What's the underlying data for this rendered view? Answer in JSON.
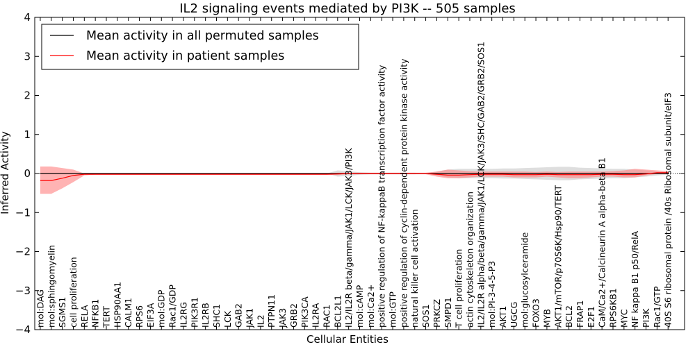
{
  "chart_data": {
    "type": "line",
    "title": "IL2 signaling events mediated by PI3K -- 505 samples",
    "xlabel": "Cellular Entities",
    "ylabel": "Inferred Activity",
    "ylim": [
      -4,
      4
    ],
    "yticks": [
      -4,
      -3,
      -2,
      -1,
      0,
      1,
      2,
      3,
      4
    ],
    "legend_position": "top-left",
    "legend": [
      "Mean activity in all permuted samples",
      "Mean activity in patient samples"
    ],
    "colors": {
      "permuted": "#000000",
      "patient": "#ff0000",
      "patient_band": "#ff8080",
      "permuted_band": "#c8c8c8"
    },
    "categories": [
      "mol:DAG",
      "mol:sphingomyelin",
      "SGMS1",
      "cell proliferation",
      "RELA",
      "NFKB1",
      "TERT",
      "HSP90AA1",
      "CALM1",
      "RPS6",
      "EIF3A",
      "mol:GDP",
      "Rac1/GDP",
      "IL2RG",
      "PIK3R1",
      "IL2RB",
      "SHC1",
      "LCK",
      "GAB2",
      "JAK1",
      "IL2",
      "PTPN11",
      "JAK3",
      "GRB2",
      "PIK3CA",
      "IL2RA",
      "RAC1",
      "BCL2L1",
      "IL2/IL2R beta/gamma/JAK1/LCK/JAK3/PI3K",
      "mol:cAMP",
      "mol:Ca2+",
      "positive regulation of NF-kappaB transcription factor activity",
      "mol:GTP",
      "positive regulation of cyclin-dependent protein kinase activity",
      "natural killer cell activation",
      "SOS1",
      "PRKCZ",
      "SMPD1",
      "T cell proliferation",
      "actin cytoskeleton organization",
      "IL2/IL2R alpha/beta/gamma/JAK1/LCK/JAK3/SHC/GAB2/GRB2/SOS1",
      "mol:PI-3-4-5-P3",
      "AKT1",
      "UGCG",
      "mol:glucosylceramide",
      "FOXO3",
      "MYB",
      "AKT1/mTOR/p70S6K/Hsp90/TERT",
      "BCL2",
      "FRAP1",
      "E2F1",
      "CaM/Ca2+/Calcineurin A alpha-beta B1",
      "RPS6KB1",
      "MYC",
      "NF kappa B1 p50/RelA",
      "PI3K",
      "Rac1/GTP",
      "40S S6 ribosomal protein /40s Ribosomal subunit/eIF3"
    ],
    "series": [
      {
        "name": "Mean activity in all permuted samples",
        "values": [
          0,
          0,
          0,
          0,
          0,
          0,
          0,
          0,
          0,
          0,
          0,
          0,
          0,
          0,
          0,
          0,
          0,
          0,
          0,
          0,
          0,
          0,
          0,
          0,
          0,
          0,
          0,
          0,
          0,
          0,
          0,
          0,
          0,
          0,
          0,
          0,
          0,
          0,
          0,
          0,
          0,
          0,
          0,
          0,
          0,
          0,
          0,
          0,
          0,
          0,
          0,
          0,
          0,
          0,
          0,
          0,
          0,
          0
        ],
        "lower": [
          0,
          0,
          0,
          0,
          0,
          0,
          0,
          0,
          0,
          0,
          0,
          0,
          0,
          0,
          0,
          0,
          0,
          0,
          0,
          0,
          0,
          0,
          0,
          0,
          0,
          0,
          0,
          -0.08,
          -0.06,
          -0.03,
          -0.02,
          -0.02,
          -0.02,
          -0.02,
          -0.02,
          0,
          -0.05,
          -0.1,
          -0.12,
          -0.12,
          -0.12,
          -0.12,
          -0.13,
          -0.13,
          -0.14,
          -0.15,
          -0.16,
          -0.17,
          -0.17,
          -0.15,
          -0.14,
          -0.13,
          -0.12,
          -0.12,
          -0.1,
          -0.08,
          -0.05,
          -0.03
        ],
        "upper": [
          0,
          0,
          0,
          0,
          0,
          0,
          0,
          0,
          0,
          0,
          0,
          0,
          0,
          0,
          0,
          0,
          0,
          0,
          0,
          0,
          0,
          0,
          0,
          0,
          0,
          0,
          0,
          0.08,
          0.06,
          0.03,
          0.02,
          0.02,
          0.02,
          0.02,
          0.02,
          0,
          0.05,
          0.1,
          0.12,
          0.12,
          0.12,
          0.12,
          0.13,
          0.13,
          0.14,
          0.15,
          0.16,
          0.17,
          0.17,
          0.15,
          0.14,
          0.13,
          0.12,
          0.12,
          0.1,
          0.08,
          0.05,
          0.03
        ]
      },
      {
        "name": "Mean activity in patient samples",
        "values": [
          -0.18,
          -0.18,
          -0.12,
          -0.05,
          -0.02,
          -0.02,
          -0.02,
          -0.02,
          -0.02,
          -0.02,
          -0.02,
          -0.02,
          -0.02,
          -0.02,
          -0.02,
          -0.02,
          -0.02,
          -0.02,
          -0.02,
          -0.02,
          -0.02,
          -0.02,
          -0.02,
          -0.02,
          -0.02,
          -0.02,
          -0.02,
          -0.01,
          0.0,
          0.0,
          0.0,
          0.0,
          0.0,
          0.0,
          0.0,
          0.0,
          -0.02,
          -0.04,
          -0.04,
          -0.03,
          -0.02,
          -0.02,
          -0.02,
          -0.03,
          -0.03,
          -0.03,
          -0.02,
          -0.03,
          -0.03,
          -0.03,
          -0.03,
          -0.02,
          -0.02,
          -0.03,
          -0.03,
          -0.01,
          0.02,
          0.02
        ],
        "lower": [
          -0.52,
          -0.52,
          -0.38,
          -0.22,
          -0.05,
          -0.03,
          -0.03,
          -0.03,
          -0.03,
          -0.03,
          -0.03,
          -0.03,
          -0.03,
          -0.03,
          -0.03,
          -0.03,
          -0.03,
          -0.03,
          -0.03,
          -0.03,
          -0.03,
          -0.03,
          -0.03,
          -0.03,
          -0.03,
          -0.03,
          -0.03,
          -0.04,
          -0.02,
          -0.02,
          -0.02,
          -0.02,
          -0.02,
          -0.02,
          -0.02,
          -0.02,
          -0.08,
          -0.12,
          -0.12,
          -0.1,
          -0.08,
          -0.08,
          -0.08,
          -0.1,
          -0.1,
          -0.1,
          -0.08,
          -0.1,
          -0.12,
          -0.12,
          -0.1,
          -0.08,
          -0.08,
          -0.1,
          -0.1,
          -0.05,
          -0.01,
          -0.01
        ],
        "upper": [
          0.18,
          0.18,
          0.14,
          0.1,
          0.0,
          -0.01,
          -0.01,
          -0.01,
          -0.01,
          -0.01,
          -0.01,
          -0.01,
          -0.01,
          -0.01,
          -0.01,
          -0.01,
          -0.01,
          -0.01,
          -0.01,
          -0.01,
          -0.01,
          -0.01,
          -0.01,
          -0.01,
          -0.01,
          -0.01,
          -0.01,
          0.02,
          0.02,
          0.02,
          0.02,
          0.02,
          0.02,
          0.02,
          0.02,
          0.02,
          0.05,
          0.1,
          0.08,
          0.06,
          0.05,
          0.05,
          0.05,
          0.05,
          0.05,
          0.04,
          0.05,
          0.04,
          0.05,
          0.05,
          0.05,
          0.05,
          0.06,
          0.08,
          0.12,
          0.1,
          0.08,
          0.06
        ]
      }
    ]
  }
}
